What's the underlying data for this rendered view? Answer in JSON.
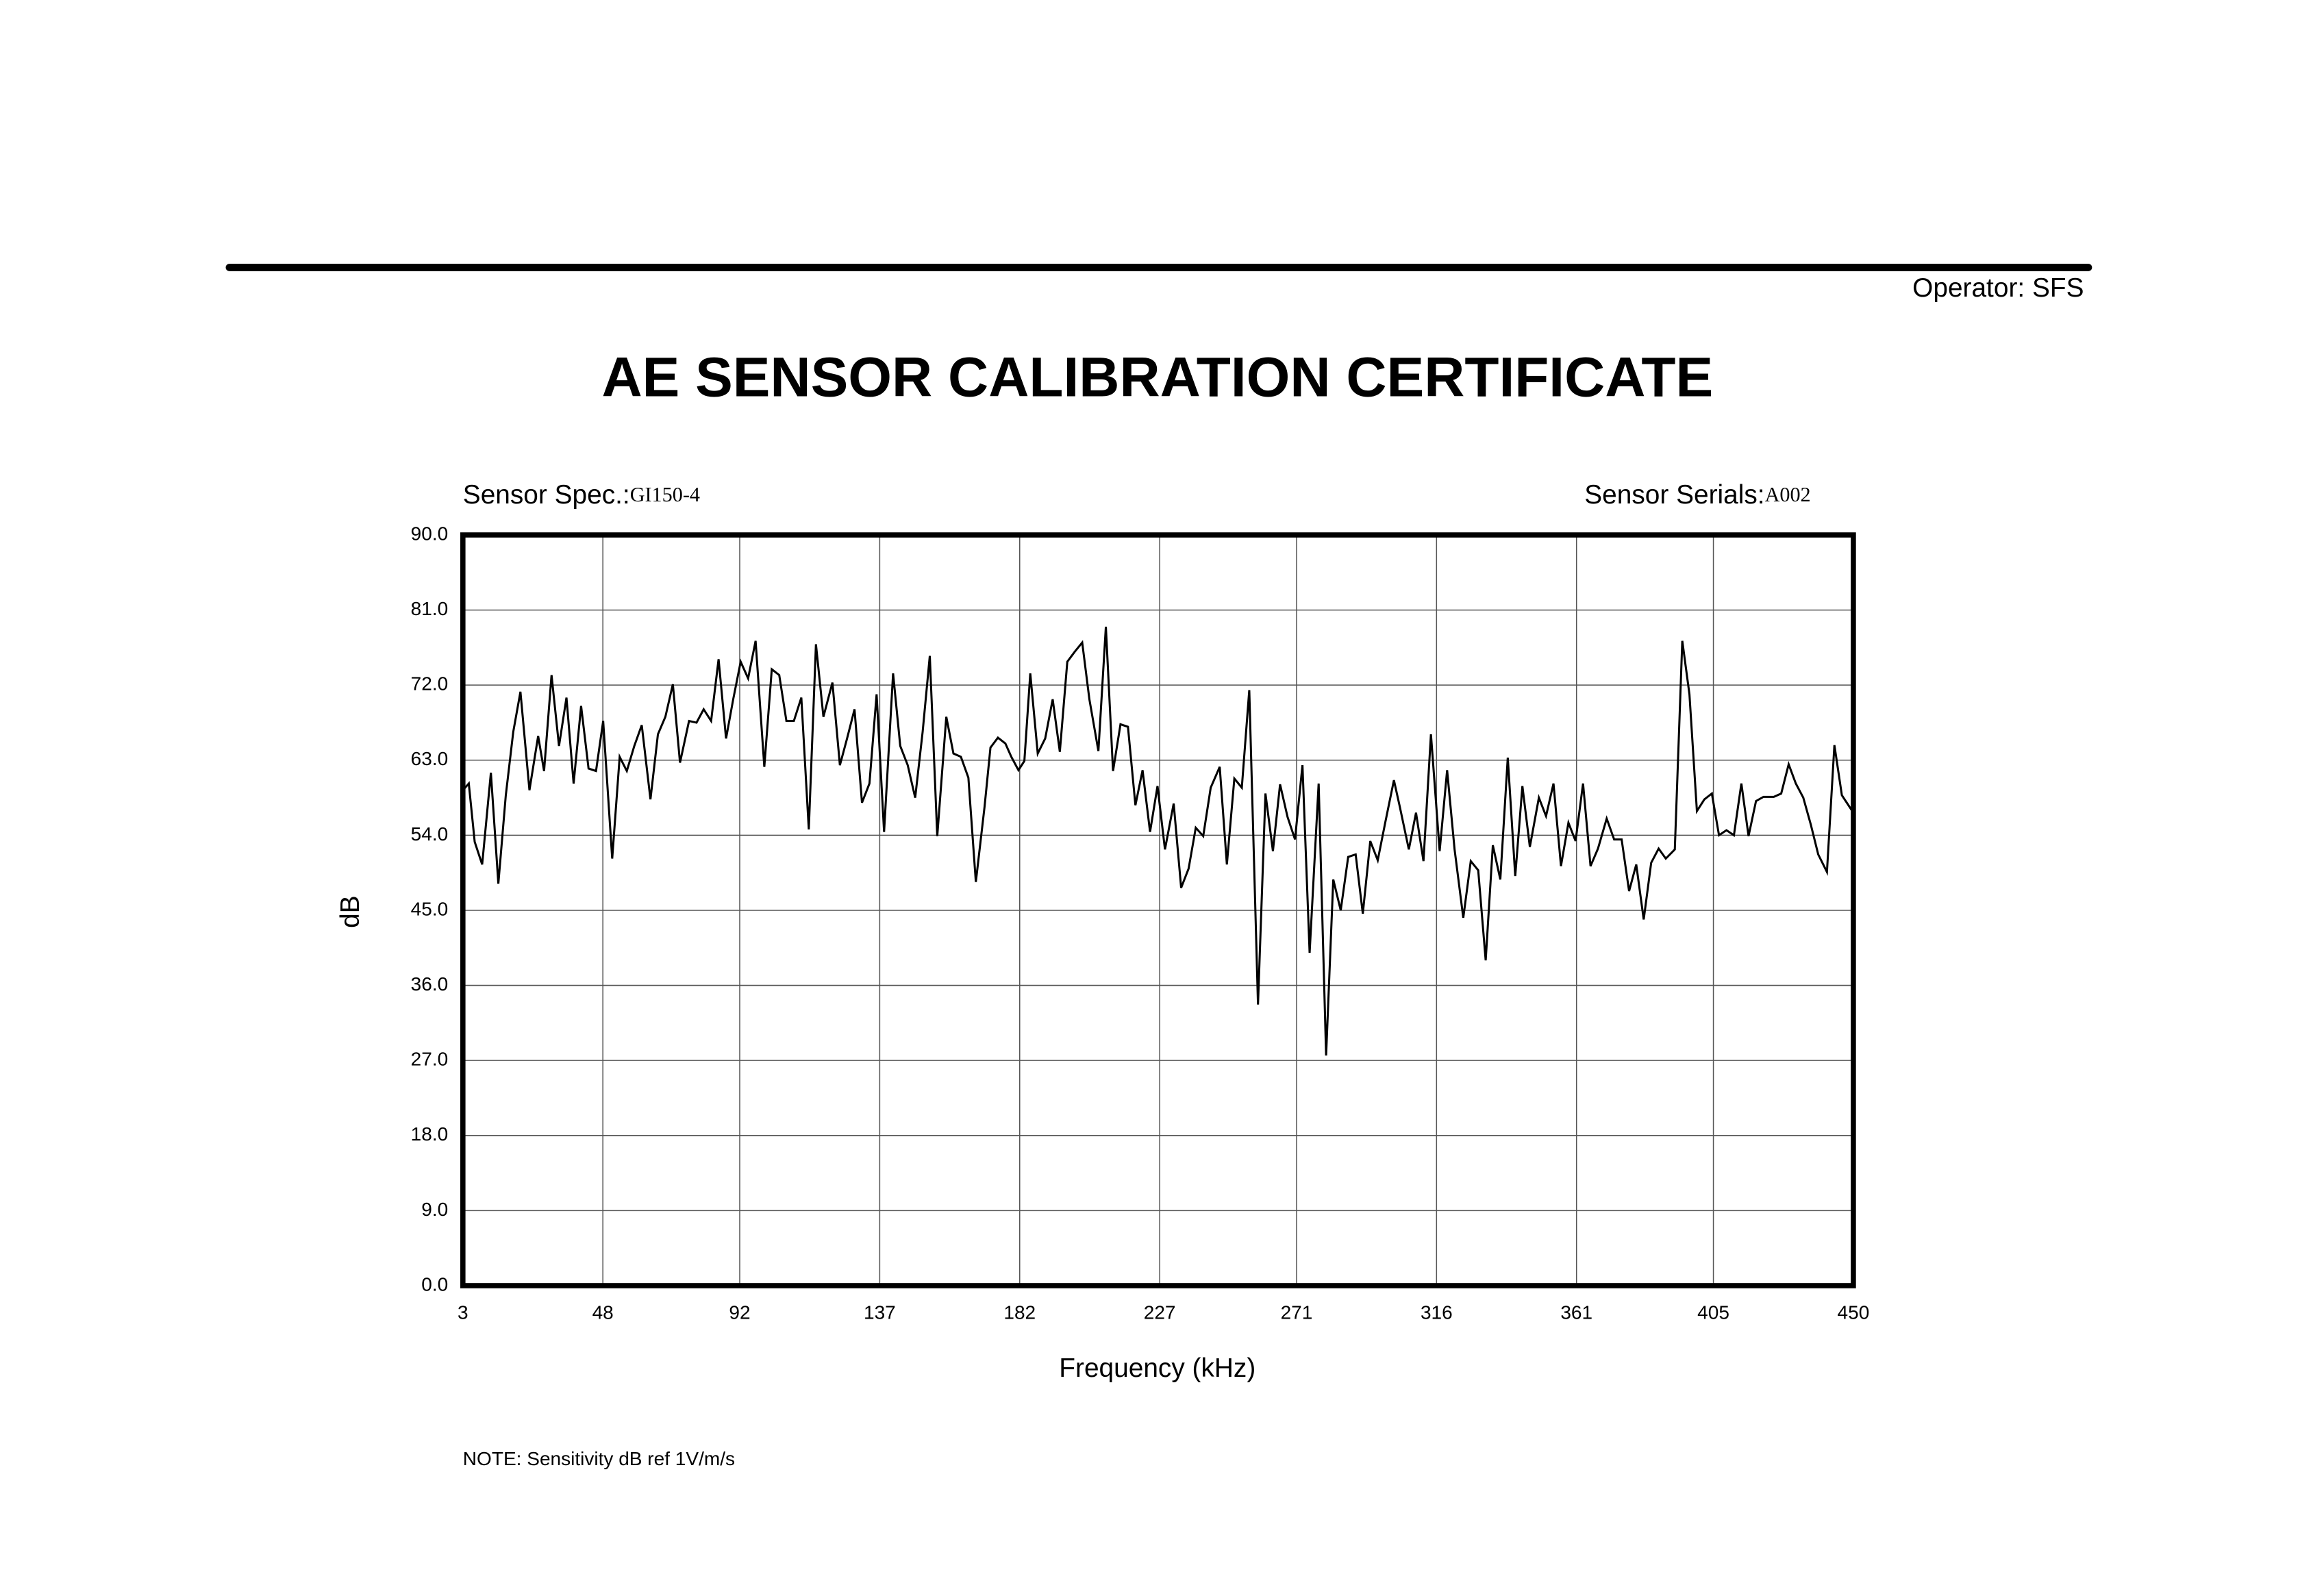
{
  "operator": "Operator: SFS",
  "chart_data": {
    "type": "line",
    "title": "AE SENSOR CALIBRATION CERTIFICATE",
    "sensor_spec_label": "Sensor Spec.:",
    "sensor_spec": "GI150-4",
    "sensor_serials_label": "Sensor Serials:",
    "sensor_serials": "A002",
    "x_label": "Frequency (kHz)",
    "y_label": "dB",
    "note": "NOTE:  Sensitivity dB ref 1V/m/s",
    "color": "#000000",
    "grid": true,
    "xlim": [
      3,
      450
    ],
    "xticks": [
      3,
      48,
      92,
      137,
      182,
      227,
      271,
      316,
      361,
      405,
      450
    ],
    "ylim": [
      0,
      90
    ],
    "yticks": [
      {
        "value": 0,
        "label": "0.0"
      },
      {
        "value": 9,
        "label": "9.0"
      },
      {
        "value": 18,
        "label": "18.0"
      },
      {
        "value": 27,
        "label": "27.0"
      },
      {
        "value": 36,
        "label": "36.0"
      },
      {
        "value": 45,
        "label": "45.0"
      },
      {
        "value": 54,
        "label": "54.0"
      },
      {
        "value": 63,
        "label": "63.0"
      },
      {
        "value": 72,
        "label": "72.0"
      },
      {
        "value": 81,
        "label": "81.0"
      },
      {
        "value": 90,
        "label": "90.0"
      }
    ],
    "x": [
      3.0,
      4.9,
      6.8,
      9.2,
      12.0,
      14.4,
      16.8,
      19.2,
      21.5,
      24.4,
      27.2,
      29.1,
      31.5,
      33.9,
      36.3,
      38.6,
      41.0,
      43.4,
      45.8,
      48.1,
      51.0,
      53.4,
      55.7,
      58.1,
      60.5,
      63.3,
      65.7,
      68.1,
      70.5,
      72.8,
      75.7,
      78.1,
      80.4,
      82.8,
      85.2,
      87.6,
      89.9,
      92.3,
      94.7,
      97.1,
      99.9,
      102.3,
      104.7,
      107.0,
      109.4,
      111.8,
      114.2,
      116.5,
      118.9,
      121.8,
      124.2,
      126.5,
      128.9,
      131.3,
      133.7,
      136.0,
      138.4,
      141.3,
      143.6,
      146.0,
      148.4,
      150.8,
      153.1,
      155.5,
      158.4,
      160.7,
      163.1,
      165.5,
      167.9,
      170.7,
      172.6,
      175.0,
      177.4,
      179.3,
      181.6,
      183.5,
      185.4,
      187.8,
      190.2,
      192.6,
      194.9,
      197.3,
      199.7,
      202.1,
      204.4,
      207.3,
      209.7,
      212.0,
      214.4,
      216.8,
      219.2,
      221.5,
      223.9,
      226.3,
      228.7,
      231.5,
      233.9,
      236.3,
      238.6,
      241.0,
      243.4,
      246.3,
      248.6,
      251.0,
      253.4,
      255.8,
      258.6,
      261.0,
      263.4,
      265.7,
      268.1,
      270.5,
      272.9,
      275.2,
      278.1,
      280.5,
      282.8,
      285.2,
      287.6,
      290.0,
      292.3,
      294.7,
      297.1,
      299.5,
      302.3,
      304.2,
      307.1,
      309.4,
      311.8,
      314.2,
      317.0,
      319.4,
      321.8,
      324.6,
      327.0,
      329.4,
      331.8,
      334.1,
      336.5,
      338.9,
      341.3,
      343.6,
      346.0,
      348.9,
      351.2,
      353.6,
      356.0,
      358.4,
      360.7,
      363.1,
      365.5,
      367.9,
      370.7,
      373.1,
      375.5,
      377.9,
      380.2,
      382.6,
      385.0,
      387.4,
      389.7,
      392.6,
      395.0,
      397.3,
      399.7,
      402.1,
      404.5,
      406.8,
      409.2,
      411.6,
      414.0,
      416.3,
      418.7,
      421.1,
      424.4,
      426.8,
      429.2,
      431.5,
      433.9,
      436.3,
      438.7,
      441.5,
      443.9,
      446.3,
      450.0
    ],
    "values": [
      59.4,
      60.2,
      53.2,
      50.5,
      61.5,
      48.2,
      58.8,
      66.4,
      71.2,
      59.4,
      65.9,
      61.7,
      73.2,
      64.7,
      70.5,
      60.2,
      69.5,
      62.0,
      61.7,
      67.7,
      51.2,
      63.4,
      61.7,
      64.7,
      67.2,
      58.3,
      66.1,
      68.2,
      72.1,
      62.7,
      67.7,
      67.5,
      69.1,
      67.7,
      75.1,
      65.6,
      70.3,
      74.8,
      72.8,
      77.3,
      62.2,
      73.9,
      73.2,
      67.7,
      67.7,
      70.5,
      54.7,
      76.9,
      68.2,
      72.3,
      62.4,
      65.6,
      69.1,
      57.9,
      60.2,
      70.9,
      54.4,
      73.4,
      64.7,
      62.4,
      58.5,
      66.4,
      75.5,
      53.9,
      68.2,
      63.8,
      63.4,
      60.9,
      48.4,
      57.4,
      64.5,
      65.7,
      65.0,
      63.4,
      61.8,
      62.9,
      73.4,
      63.8,
      65.6,
      70.3,
      64.0,
      74.8,
      76.0,
      77.1,
      70.3,
      64.1,
      79.0,
      61.7,
      67.3,
      67.0,
      57.6,
      61.8,
      54.4,
      59.9,
      52.3,
      57.8,
      47.7,
      50.0,
      54.9,
      53.9,
      59.7,
      62.2,
      50.5,
      60.8,
      59.7,
      71.4,
      33.7,
      59.0,
      52.1,
      60.1,
      56.2,
      53.5,
      62.4,
      39.9,
      60.2,
      27.6,
      48.7,
      45.0,
      51.4,
      51.7,
      44.6,
      53.3,
      51.0,
      55.5,
      60.6,
      57.4,
      52.3,
      56.7,
      50.9,
      66.1,
      52.1,
      61.8,
      52.3,
      44.1,
      50.9,
      49.8,
      39.0,
      52.8,
      48.7,
      63.3,
      49.1,
      59.9,
      52.6,
      58.5,
      56.3,
      60.2,
      50.3,
      55.5,
      53.3,
      60.2,
      50.3,
      52.4,
      56.0,
      53.5,
      53.5,
      47.3,
      50.5,
      43.9,
      50.7,
      52.4,
      51.2,
      52.3,
      77.3,
      70.9,
      56.9,
      58.3,
      59.0,
      54.0,
      54.6,
      54.0,
      60.2,
      53.9,
      58.1,
      58.6,
      58.6,
      59.0,
      62.5,
      60.2,
      58.5,
      55.3,
      51.7,
      49.6,
      64.8,
      58.8,
      56.7
    ]
  }
}
